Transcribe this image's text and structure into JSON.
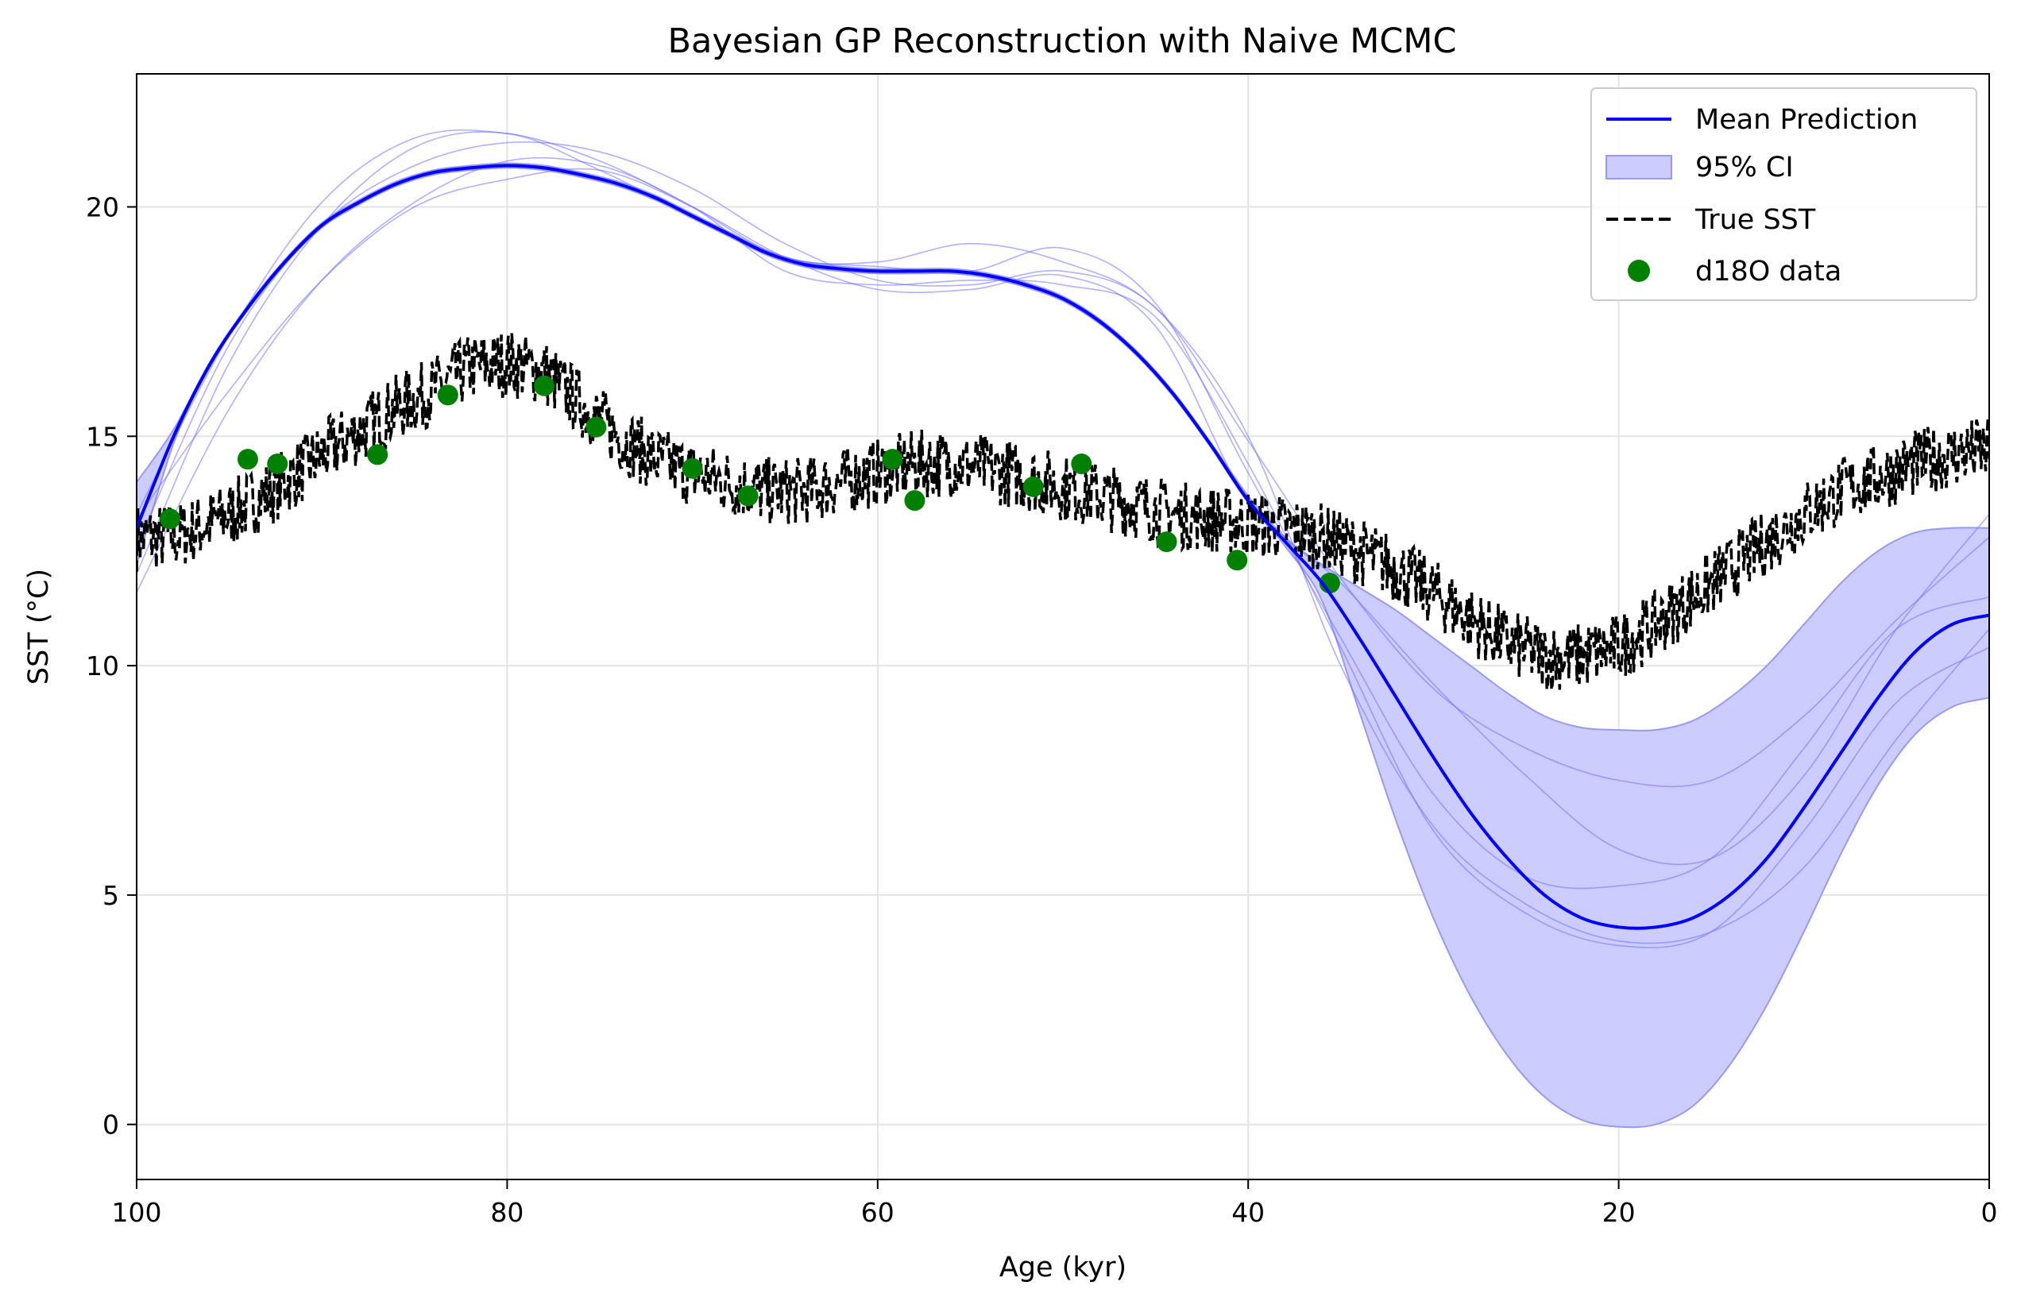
{
  "chart_data": {
    "type": "line",
    "title": "Bayesian GP Reconstruction with Naive MCMC",
    "xlabel": "Age (kyr)",
    "ylabel": "SST (°C)",
    "xlim": [
      100,
      0
    ],
    "ylim": [
      -1.2,
      22.9
    ],
    "x_inverted": true,
    "grid": true,
    "legend_position": "top-right",
    "x_ticks": [
      100,
      80,
      60,
      40,
      20,
      0
    ],
    "y_ticks": [
      0,
      5,
      10,
      15,
      20
    ],
    "colors": {
      "mean": "#0000ff",
      "ci_fill": "#ccccff",
      "ci_edge": "#9999f0",
      "samples": "#7070ff",
      "true_sst": "#000000",
      "data_points": "#008000"
    },
    "legend": [
      {
        "key": "mean",
        "label": "Mean Prediction"
      },
      {
        "key": "ci",
        "label": "95% CI"
      },
      {
        "key": "true",
        "label": "True SST"
      },
      {
        "key": "data",
        "label": "d18O data"
      }
    ],
    "series": [
      {
        "name": "Mean Prediction",
        "style": "solid",
        "x": [
          100,
          98,
          96,
          94,
          92,
          90,
          88,
          86,
          84,
          82,
          80,
          78,
          76,
          74,
          72,
          70,
          68,
          66,
          64,
          62,
          60,
          58,
          56,
          54,
          52,
          50,
          48,
          46,
          44,
          42,
          40,
          38,
          36,
          34,
          32,
          30,
          28,
          26,
          24,
          22,
          20,
          18,
          16,
          14,
          12,
          10,
          8,
          6,
          4,
          2,
          0
        ],
        "y": [
          13.0,
          15.0,
          16.6,
          17.8,
          18.8,
          19.6,
          20.1,
          20.5,
          20.75,
          20.85,
          20.9,
          20.85,
          20.7,
          20.5,
          20.2,
          19.8,
          19.4,
          19.0,
          18.75,
          18.65,
          18.6,
          18.6,
          18.6,
          18.5,
          18.3,
          18.0,
          17.5,
          16.8,
          15.9,
          14.8,
          13.6,
          12.7,
          11.8,
          10.6,
          9.3,
          8.0,
          6.8,
          5.8,
          5.0,
          4.5,
          4.3,
          4.3,
          4.5,
          5.0,
          5.8,
          6.9,
          8.1,
          9.3,
          10.3,
          10.9,
          11.1
        ]
      },
      {
        "name": "95% CI",
        "type": "band",
        "x": [
          100,
          98,
          96,
          94,
          92,
          90,
          88,
          86,
          84,
          82,
          80,
          78,
          76,
          74,
          72,
          70,
          68,
          66,
          64,
          62,
          60,
          58,
          56,
          54,
          52,
          50,
          48,
          46,
          44,
          42,
          40,
          38,
          36,
          34,
          32,
          30,
          28,
          26,
          24,
          22,
          20,
          18,
          16,
          14,
          12,
          10,
          8,
          6,
          4,
          2,
          0
        ],
        "lower": [
          12.2,
          14.85,
          16.55,
          17.75,
          18.75,
          19.55,
          20.05,
          20.45,
          20.7,
          20.8,
          20.85,
          20.8,
          20.65,
          20.45,
          20.15,
          19.75,
          19.35,
          18.95,
          18.7,
          18.6,
          18.55,
          18.55,
          18.55,
          18.45,
          18.25,
          17.95,
          17.45,
          16.75,
          15.85,
          14.75,
          13.55,
          12.6,
          11.4,
          9.0,
          6.6,
          4.5,
          2.8,
          1.5,
          0.6,
          0.1,
          -0.05,
          0.0,
          0.4,
          1.3,
          2.6,
          4.2,
          5.9,
          7.4,
          8.5,
          9.1,
          9.3
        ],
        "upper": [
          14.0,
          15.15,
          16.65,
          17.85,
          18.85,
          19.65,
          20.15,
          20.55,
          20.8,
          20.9,
          20.95,
          20.9,
          20.75,
          20.55,
          20.25,
          19.85,
          19.45,
          19.05,
          18.8,
          18.7,
          18.65,
          18.65,
          18.65,
          18.55,
          18.35,
          18.05,
          17.55,
          16.85,
          15.95,
          14.85,
          13.7,
          12.8,
          12.2,
          11.7,
          11.2,
          10.6,
          10.0,
          9.4,
          8.9,
          8.65,
          8.6,
          8.6,
          8.8,
          9.3,
          10.0,
          10.9,
          11.8,
          12.5,
          12.9,
          13.0,
          13.0
        ]
      },
      {
        "name": "True SST",
        "style": "dashed",
        "x": [
          100,
          98,
          96,
          94,
          92,
          90,
          88,
          86,
          84,
          82,
          80,
          78,
          76,
          74,
          72,
          70,
          68,
          66,
          64,
          62,
          60,
          58,
          56,
          54,
          52,
          50,
          48,
          46,
          44,
          42,
          40,
          38,
          36,
          34,
          32,
          30,
          28,
          26,
          24,
          22,
          20,
          18,
          16,
          14,
          12,
          10,
          8,
          6,
          4,
          2,
          0
        ],
        "y": [
          12.8,
          12.8,
          13.1,
          13.5,
          14.0,
          14.6,
          15.1,
          15.6,
          16.0,
          16.5,
          16.6,
          16.4,
          15.7,
          15.0,
          14.5,
          14.2,
          14.0,
          13.8,
          13.8,
          14.0,
          14.2,
          14.4,
          14.4,
          14.3,
          14.1,
          13.9,
          13.7,
          13.5,
          13.3,
          13.2,
          13.1,
          13.0,
          12.8,
          12.5,
          12.1,
          11.6,
          11.0,
          10.5,
          10.2,
          10.2,
          10.4,
          10.9,
          11.5,
          12.1,
          12.7,
          13.3,
          13.8,
          14.1,
          14.4,
          14.6,
          14.7
        ]
      }
    ],
    "samples": [
      {
        "x": [
          100,
          95,
          90,
          85,
          80,
          75,
          70,
          65,
          60,
          55,
          50,
          45,
          40,
          35,
          30,
          25,
          20,
          15,
          10,
          5,
          0
        ],
        "y": [
          12.6,
          17.0,
          19.6,
          20.9,
          21.4,
          21.2,
          20.4,
          19.2,
          18.4,
          18.3,
          18.6,
          17.8,
          14.9,
          11.9,
          9.5,
          8.2,
          7.5,
          7.5,
          8.9,
          11.0,
          12.8
        ]
      },
      {
        "x": [
          100,
          95,
          90,
          85,
          80,
          75,
          70,
          65,
          60,
          55,
          50,
          45,
          40,
          35,
          30,
          25,
          20,
          15,
          10,
          5,
          0
        ],
        "y": [
          13.2,
          16.0,
          18.4,
          20.0,
          20.6,
          20.8,
          20.0,
          18.9,
          18.2,
          18.2,
          18.5,
          17.4,
          13.6,
          11.8,
          9.6,
          7.6,
          6.0,
          5.8,
          7.6,
          10.8,
          13.3
        ]
      },
      {
        "x": [
          100,
          95,
          90,
          85,
          80,
          75,
          70,
          65,
          60,
          55,
          50,
          45,
          40,
          35,
          30,
          25,
          20,
          15,
          10,
          5,
          0
        ],
        "y": [
          13.3,
          17.2,
          20.1,
          21.5,
          21.6,
          21.0,
          20.0,
          18.9,
          18.8,
          19.2,
          18.8,
          17.8,
          15.0,
          10.0,
          6.5,
          4.8,
          4.0,
          4.2,
          5.6,
          8.4,
          10.8
        ]
      },
      {
        "x": [
          100,
          95,
          90,
          85,
          80,
          75,
          70,
          65,
          60,
          55,
          50,
          45,
          40,
          35,
          30,
          25,
          20,
          15,
          10,
          5,
          0
        ],
        "y": [
          12.0,
          16.6,
          19.6,
          21.3,
          21.6,
          20.8,
          19.8,
          18.9,
          18.7,
          18.6,
          19.1,
          17.9,
          14.2,
          10.6,
          7.2,
          5.4,
          5.2,
          5.8,
          8.2,
          10.8,
          11.5
        ]
      },
      {
        "x": [
          100,
          95,
          90,
          85,
          80,
          75,
          70,
          65,
          60,
          55,
          50,
          45,
          40,
          35,
          30,
          25,
          20,
          15,
          10,
          5,
          0
        ],
        "y": [
          11.6,
          15.6,
          18.4,
          20.1,
          21.0,
          20.9,
          20.0,
          18.6,
          18.3,
          18.4,
          18.3,
          17.6,
          14.4,
          10.4,
          6.4,
          4.6,
          3.9,
          4.2,
          6.4,
          9.2,
          10.4
        ]
      }
    ],
    "points": {
      "name": "d18O data",
      "x": [
        98.2,
        94.0,
        92.4,
        87.0,
        83.2,
        78.0,
        75.2,
        70.0,
        67.0,
        59.2,
        58.0,
        51.6,
        49.0,
        44.4,
        40.6,
        35.6
      ],
      "y": [
        13.2,
        14.5,
        14.4,
        14.6,
        15.9,
        16.1,
        15.2,
        14.3,
        13.7,
        14.5,
        13.6,
        13.9,
        14.4,
        12.7,
        12.3,
        11.8
      ]
    }
  }
}
